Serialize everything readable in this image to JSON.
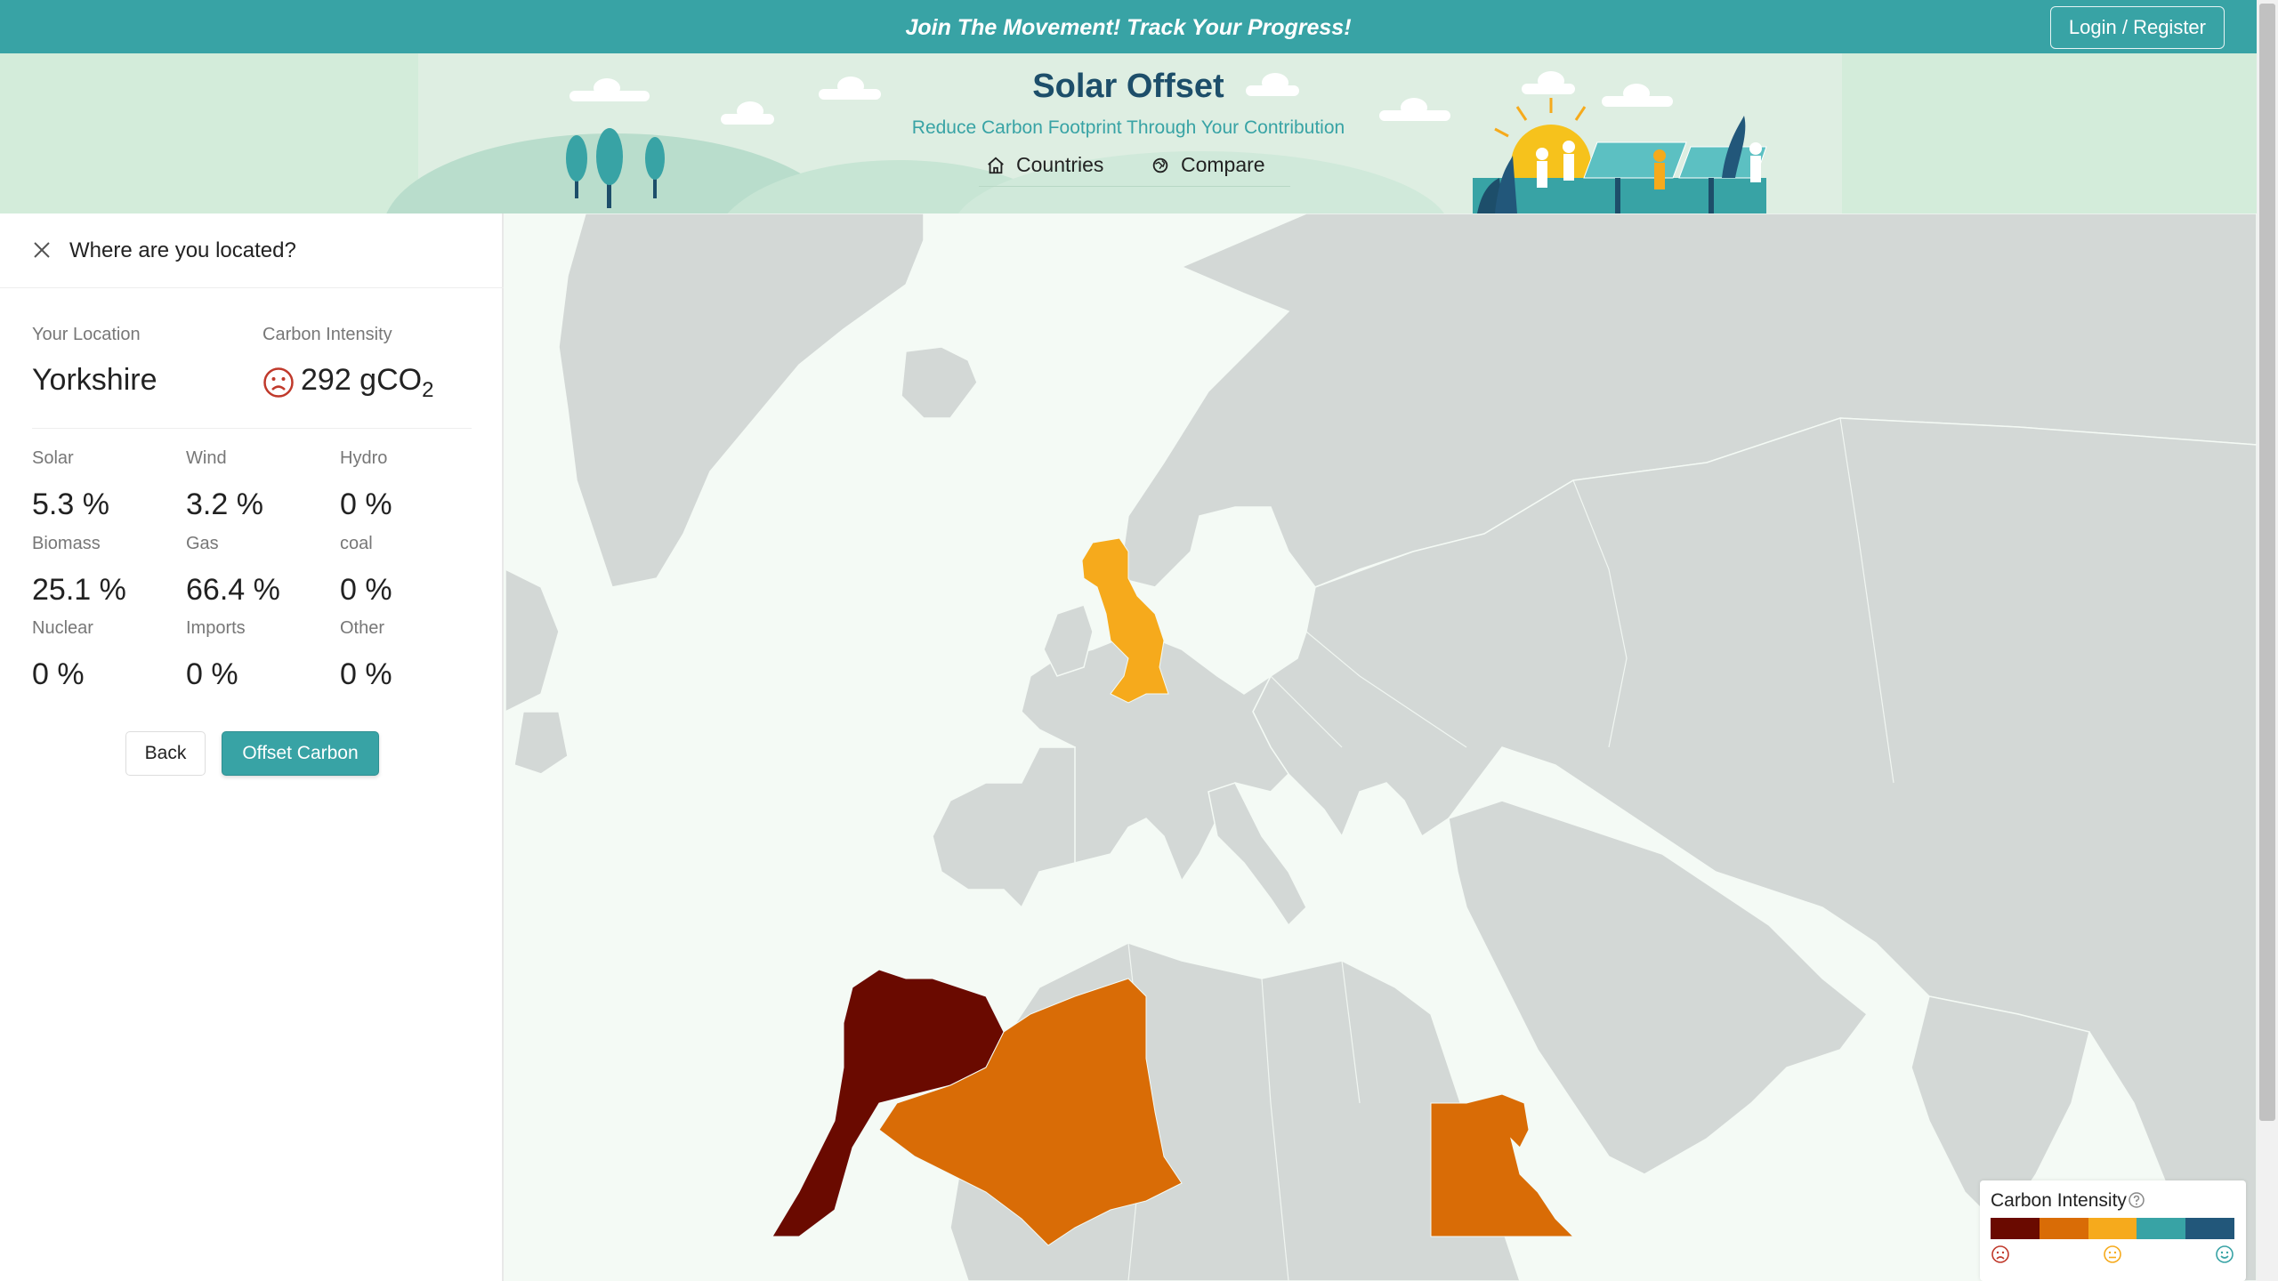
{
  "topbar": {
    "text": "Join The Movement! Track Your Progress!",
    "login_label": "Login / Register"
  },
  "header": {
    "title": "Solar Offset",
    "subtitle": "Reduce Carbon Footprint Through Your Contribution",
    "nav": [
      {
        "label": "Countries",
        "icon": "home-icon"
      },
      {
        "label": "Compare",
        "icon": "globe-icon"
      }
    ]
  },
  "panel": {
    "title": "Where are you located?",
    "location_label": "Your Location",
    "location": "Yorkshire",
    "intensity_label": "Carbon Intensity",
    "intensity_value": "292 gCO",
    "intensity_sub": "2",
    "mix": [
      {
        "label": "Solar",
        "value": "5.3 %"
      },
      {
        "label": "Wind",
        "value": "3.2 %"
      },
      {
        "label": "Hydro",
        "value": "0 %"
      },
      {
        "label": "Biomass",
        "value": "25.1 %"
      },
      {
        "label": "Gas",
        "value": "66.4 %"
      },
      {
        "label": "coal",
        "value": "0 %"
      },
      {
        "label": "Nuclear",
        "value": "0 %"
      },
      {
        "label": "Imports",
        "value": "0 %"
      },
      {
        "label": "Other",
        "value": "0 %"
      }
    ],
    "back_label": "Back",
    "offset_label": "Offset Carbon"
  },
  "legend": {
    "title": "Carbon Intensity",
    "colors": [
      "#6a0a00",
      "#d96c06",
      "#f6aa1c",
      "#38a3a5",
      "#22577a"
    ]
  },
  "colors": {
    "accent": "#38a3a5",
    "land": "#d3d8d6",
    "uk": "#f6aa1c",
    "morocco": "#6a0a00",
    "algeria_egypt": "#d96c06"
  }
}
